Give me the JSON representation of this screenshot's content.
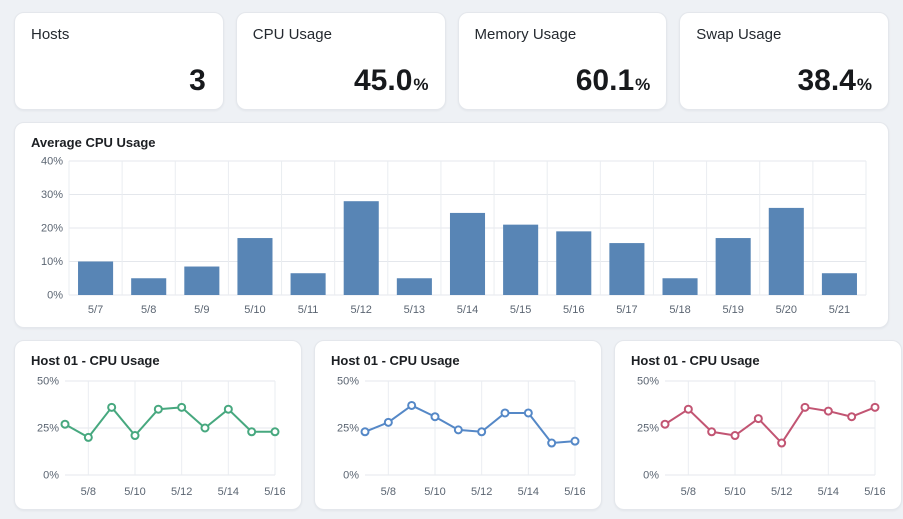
{
  "page": {
    "background": "#eef1f5"
  },
  "stat_cards": [
    {
      "label": "Hosts",
      "value": "3",
      "suffix": ""
    },
    {
      "label": "CPU Usage",
      "value": "45.0",
      "suffix": "%"
    },
    {
      "label": "Memory Usage",
      "value": "60.1",
      "suffix": "%"
    },
    {
      "label": "Swap Usage",
      "value": "38.4",
      "suffix": "%"
    }
  ],
  "chart_data": [
    {
      "type": "bar",
      "title": "Average CPU Usage",
      "categories": [
        "5/7",
        "5/8",
        "5/9",
        "5/10",
        "5/11",
        "5/12",
        "5/13",
        "5/14",
        "5/15",
        "5/16",
        "5/17",
        "5/18",
        "5/19",
        "5/20",
        "5/21"
      ],
      "values": [
        10,
        5,
        8.5,
        17,
        6.5,
        28,
        5,
        24.5,
        21,
        19,
        15.5,
        5,
        17,
        26,
        6.5
      ],
      "xlabel": "",
      "ylabel": "",
      "ylim": [
        0,
        40
      ],
      "yticks": [
        0,
        10,
        20,
        30,
        40
      ],
      "ytick_labels": [
        "0%",
        "10%",
        "20%",
        "30%",
        "40%"
      ],
      "color": "#5885b5",
      "grid": true,
      "legend": "none"
    },
    {
      "type": "line",
      "title": "Host 01 - CPU Usage",
      "x": [
        "5/7",
        "5/8",
        "5/9",
        "5/10",
        "5/11",
        "5/12",
        "5/13",
        "5/14",
        "5/15",
        "5/16"
      ],
      "values": [
        27,
        20,
        36,
        21,
        35,
        36,
        25,
        35,
        23,
        23
      ],
      "xticks": [
        "5/8",
        "5/10",
        "5/12",
        "5/14",
        "5/16"
      ],
      "ylim": [
        0,
        50
      ],
      "yticks": [
        0,
        25,
        50
      ],
      "ytick_labels": [
        "0%",
        "25%",
        "50%"
      ],
      "color": "#47a87f",
      "grid": true,
      "legend": "none"
    },
    {
      "type": "line",
      "title": "Host 01 - CPU Usage",
      "x": [
        "5/7",
        "5/8",
        "5/9",
        "5/10",
        "5/11",
        "5/12",
        "5/13",
        "5/14",
        "5/15",
        "5/16"
      ],
      "values": [
        23,
        28,
        37,
        31,
        24,
        23,
        33,
        33,
        17,
        18
      ],
      "xticks": [
        "5/8",
        "5/10",
        "5/12",
        "5/14",
        "5/16"
      ],
      "ylim": [
        0,
        50
      ],
      "yticks": [
        0,
        25,
        50
      ],
      "ytick_labels": [
        "0%",
        "25%",
        "50%"
      ],
      "color": "#5588c7",
      "grid": true,
      "legend": "none"
    },
    {
      "type": "line",
      "title": "Host 01 - CPU Usage",
      "x": [
        "5/7",
        "5/8",
        "5/9",
        "5/10",
        "5/11",
        "5/12",
        "5/13",
        "5/14",
        "5/15",
        "5/16"
      ],
      "values": [
        27,
        35,
        23,
        21,
        30,
        17,
        36,
        34,
        31,
        36
      ],
      "xticks": [
        "5/8",
        "5/10",
        "5/12",
        "5/14",
        "5/16"
      ],
      "ylim": [
        0,
        50
      ],
      "yticks": [
        0,
        25,
        50
      ],
      "ytick_labels": [
        "0%",
        "25%",
        "50%"
      ],
      "color": "#c25573",
      "grid": true,
      "legend": "none"
    }
  ]
}
